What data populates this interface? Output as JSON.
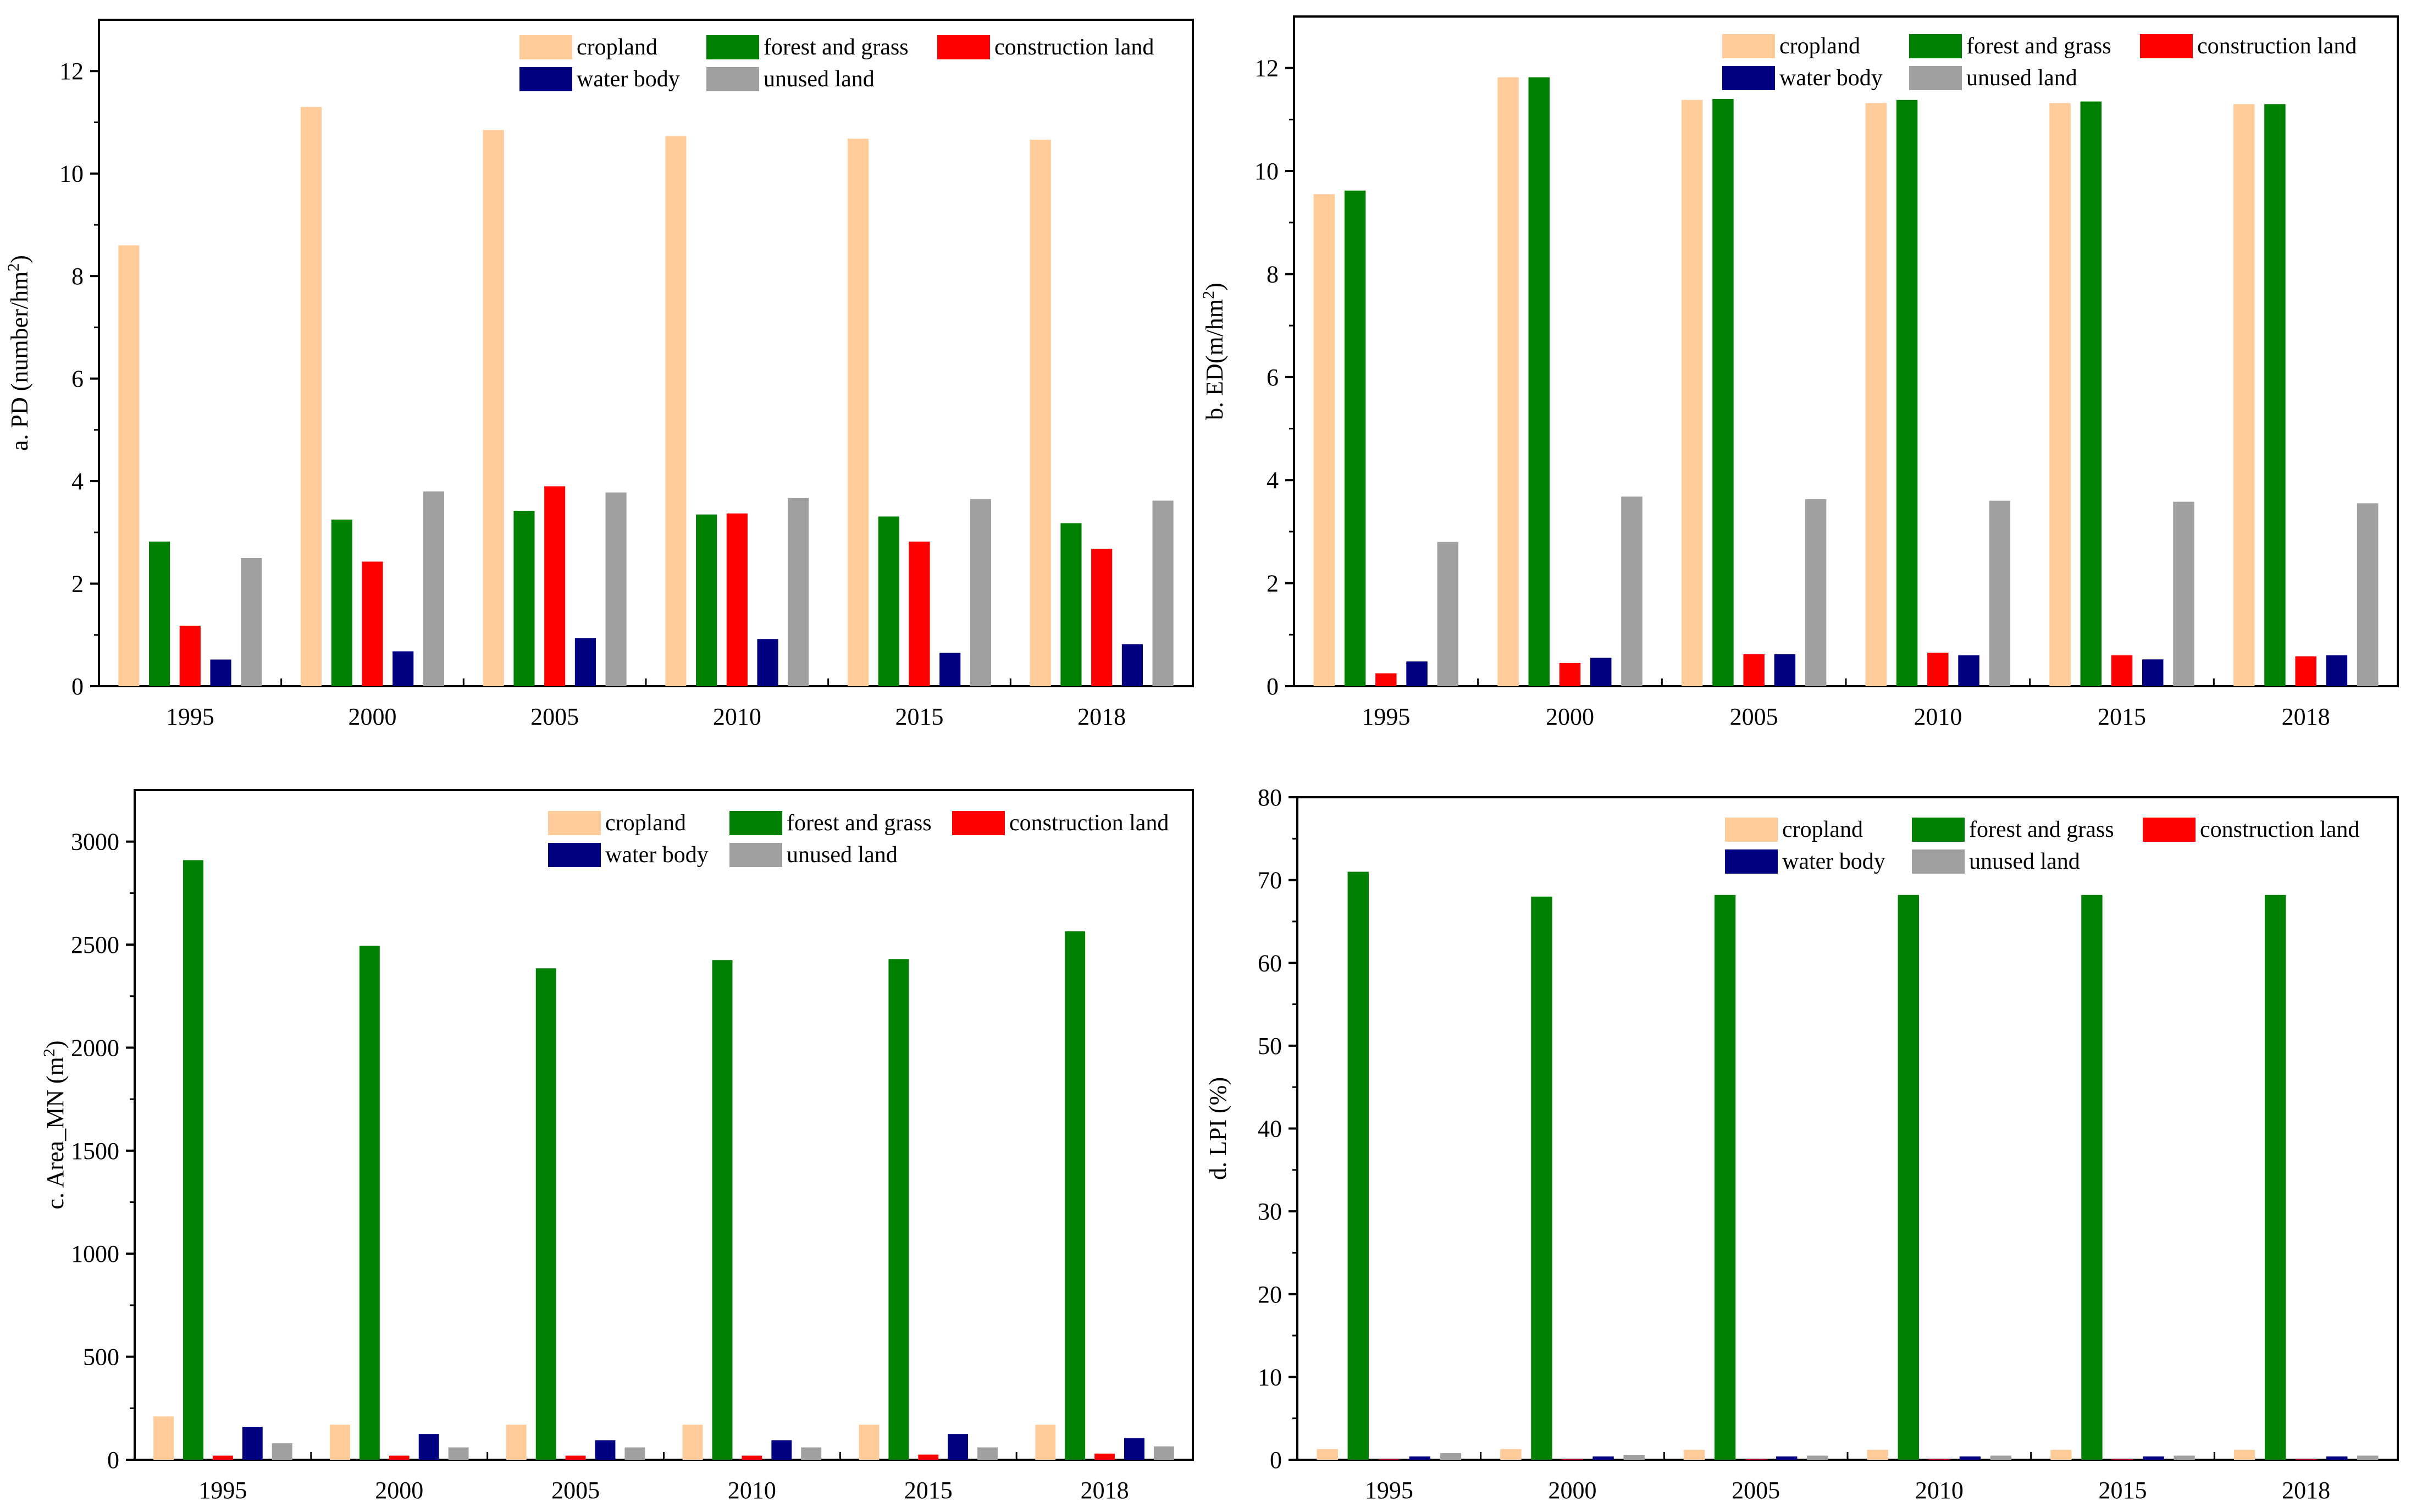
{
  "figure": {
    "series_names": [
      "cropland",
      "forest and grass",
      "construction land",
      "water body",
      "unused land"
    ],
    "series_colors": [
      "#FFCC99",
      "#008000",
      "#FF0000",
      "#000080",
      "#A0A0A0"
    ]
  },
  "chart_data": [
    {
      "type": "bar",
      "panel": "a",
      "ylabel_main": "a. PD (number/hm",
      "ylabel_sup": "2",
      "ylabel_end": ")",
      "categories": [
        "1995",
        "2000",
        "2005",
        "2010",
        "2015",
        "2018"
      ],
      "ylim": [
        0,
        13
      ],
      "yticks": [
        0,
        2,
        4,
        6,
        8,
        10,
        12
      ],
      "minor_step": 1,
      "legend_position": "top-right",
      "series": [
        {
          "name": "cropland",
          "values": [
            8.6,
            11.3,
            10.85,
            10.73,
            10.68,
            10.66
          ]
        },
        {
          "name": "forest and grass",
          "values": [
            2.82,
            3.25,
            3.42,
            3.35,
            3.31,
            3.18
          ]
        },
        {
          "name": "construction land",
          "values": [
            1.18,
            2.43,
            3.9,
            3.37,
            2.82,
            2.68
          ]
        },
        {
          "name": "water body",
          "values": [
            0.52,
            0.68,
            0.94,
            0.92,
            0.65,
            0.82
          ]
        },
        {
          "name": "unused land",
          "values": [
            2.5,
            3.8,
            3.78,
            3.67,
            3.65,
            3.62
          ]
        }
      ]
    },
    {
      "type": "bar",
      "panel": "b",
      "ylabel_main": "b. ED(m/hm",
      "ylabel_sup": "2",
      "ylabel_end": ")",
      "categories": [
        "1995",
        "2000",
        "2005",
        "2010",
        "2015",
        "2018"
      ],
      "ylim": [
        0,
        13
      ],
      "yticks": [
        0,
        2,
        4,
        6,
        8,
        10,
        12
      ],
      "minor_step": 1,
      "legend_position": "top-right",
      "series": [
        {
          "name": "cropland",
          "values": [
            9.55,
            11.82,
            11.38,
            11.32,
            11.32,
            11.3
          ]
        },
        {
          "name": "forest and grass",
          "values": [
            9.62,
            11.82,
            11.4,
            11.38,
            11.35,
            11.3
          ]
        },
        {
          "name": "construction land",
          "values": [
            0.25,
            0.45,
            0.62,
            0.65,
            0.6,
            0.58
          ]
        },
        {
          "name": "water body",
          "values": [
            0.48,
            0.55,
            0.62,
            0.6,
            0.52,
            0.6
          ]
        },
        {
          "name": "unused land",
          "values": [
            2.8,
            3.68,
            3.63,
            3.6,
            3.58,
            3.55
          ]
        }
      ]
    },
    {
      "type": "bar",
      "panel": "c",
      "ylabel_main": "c. Area_MN (m",
      "ylabel_sup": "2",
      "ylabel_end": ")",
      "categories": [
        "1995",
        "2000",
        "2005",
        "2010",
        "2015",
        "2018"
      ],
      "ylim": [
        0,
        3250
      ],
      "yticks": [
        0,
        500,
        1000,
        1500,
        2000,
        2500,
        3000
      ],
      "minor_step": 250,
      "legend_position": "top-right",
      "series": [
        {
          "name": "cropland",
          "values": [
            210,
            170,
            170,
            170,
            170,
            170
          ]
        },
        {
          "name": "forest and grass",
          "values": [
            2910,
            2495,
            2385,
            2425,
            2430,
            2565
          ]
        },
        {
          "name": "construction land",
          "values": [
            20,
            20,
            20,
            20,
            25,
            30
          ]
        },
        {
          "name": "water body",
          "values": [
            160,
            125,
            95,
            95,
            125,
            105
          ]
        },
        {
          "name": "unused land",
          "values": [
            80,
            60,
            60,
            60,
            60,
            65
          ]
        }
      ]
    },
    {
      "type": "bar",
      "panel": "d",
      "ylabel_main": "d. LPI (%)",
      "ylabel_sup": "",
      "ylabel_end": "",
      "categories": [
        "1995",
        "2000",
        "2005",
        "2010",
        "2015",
        "2018"
      ],
      "ylim": [
        0,
        80
      ],
      "yticks": [
        0,
        10,
        20,
        30,
        40,
        50,
        60,
        70,
        80
      ],
      "minor_step": 5,
      "legend_position": "top-right",
      "series": [
        {
          "name": "cropland",
          "values": [
            1.3,
            1.3,
            1.2,
            1.2,
            1.2,
            1.2
          ]
        },
        {
          "name": "forest and grass",
          "values": [
            71,
            68,
            68.2,
            68.2,
            68.2,
            68.2
          ]
        },
        {
          "name": "construction land",
          "values": [
            0.05,
            0.05,
            0.05,
            0.05,
            0.05,
            0.05
          ]
        },
        {
          "name": "water body",
          "values": [
            0.4,
            0.4,
            0.4,
            0.4,
            0.4,
            0.4
          ]
        },
        {
          "name": "unused land",
          "values": [
            0.8,
            0.6,
            0.5,
            0.5,
            0.5,
            0.5
          ]
        }
      ]
    }
  ]
}
